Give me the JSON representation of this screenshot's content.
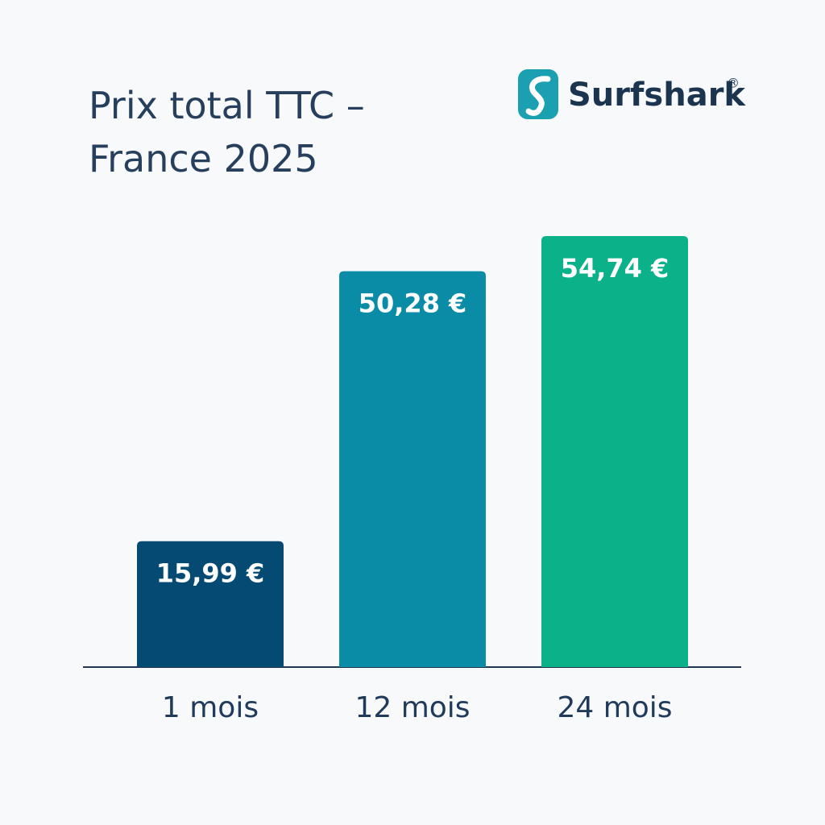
{
  "chart_data": {
    "type": "bar",
    "title": "Prix total TTC – France 2025",
    "logo_text": "Surfshark",
    "logo_mark": "®",
    "categories": [
      "1 mois",
      "12 mois",
      "24 mois"
    ],
    "values": [
      15.99,
      50.28,
      54.74
    ],
    "value_labels": [
      "15,99 €",
      "50,28 €",
      "54,74 €"
    ],
    "colors": [
      "#054a72",
      "#0a8ca6",
      "#0ab189"
    ]
  }
}
